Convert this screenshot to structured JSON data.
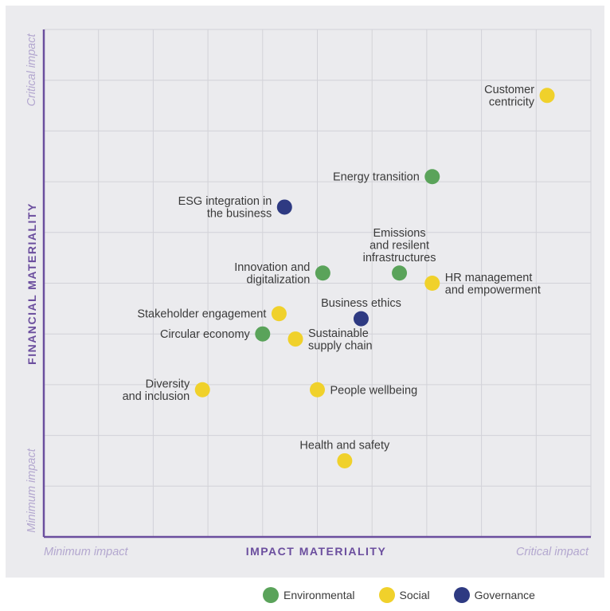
{
  "chart_data": {
    "type": "scatter",
    "xlabel": "IMPACT MATERIALITY",
    "ylabel": "FINANCIAL MATERIALITY",
    "x_min_label": "Minimum impact",
    "x_max_label": "Critical impact",
    "y_min_label": "Minimum impact",
    "y_max_label": "Critical impact",
    "xlim": [
      0,
      10
    ],
    "ylim": [
      0,
      10
    ],
    "grid": true,
    "legend_position": "bottom-right",
    "categories": [
      {
        "key": "env",
        "name": "Environmental",
        "color": "#5aa35a"
      },
      {
        "key": "soc",
        "name": "Social",
        "color": "#f0d12b"
      },
      {
        "key": "gov",
        "name": "Governance",
        "color": "#2e3a82"
      }
    ],
    "points": [
      {
        "label": "Customer centricity",
        "lines": [
          "Customer",
          "centricity"
        ],
        "x": 9.2,
        "y": 8.7,
        "category": "soc",
        "label_side": "left"
      },
      {
        "label": "Energy transition",
        "lines": [
          "Energy transition"
        ],
        "x": 7.1,
        "y": 7.1,
        "category": "env",
        "label_side": "left"
      },
      {
        "label": "ESG integration in the business",
        "lines": [
          "ESG integration in",
          "the business"
        ],
        "x": 4.4,
        "y": 6.5,
        "category": "gov",
        "label_side": "left"
      },
      {
        "label": "Emissions and resilent infrastructures",
        "lines": [
          "Emissions",
          "and resilent",
          "infrastructures"
        ],
        "x": 6.5,
        "y": 5.2,
        "category": "env",
        "label_side": "top"
      },
      {
        "label": "Innovation and digitalization",
        "lines": [
          "Innovation and",
          "digitalization"
        ],
        "x": 5.1,
        "y": 5.2,
        "category": "env",
        "label_side": "left"
      },
      {
        "label": "HR management and empowerment",
        "lines": [
          "HR management",
          "and empowerment"
        ],
        "x": 7.1,
        "y": 5.0,
        "category": "soc",
        "label_side": "right"
      },
      {
        "label": "Business ethics",
        "lines": [
          "Business ethics"
        ],
        "x": 5.8,
        "y": 4.3,
        "category": "gov",
        "label_side": "top"
      },
      {
        "label": "Stakeholder engagement",
        "lines": [
          "Stakeholder engagement"
        ],
        "x": 4.3,
        "y": 4.4,
        "category": "soc",
        "label_side": "left"
      },
      {
        "label": "Circular economy",
        "lines": [
          "Circular economy"
        ],
        "x": 4.0,
        "y": 4.0,
        "category": "env",
        "label_side": "left"
      },
      {
        "label": "Sustainable supply chain",
        "lines": [
          "Sustainable",
          "supply chain"
        ],
        "x": 4.6,
        "y": 3.9,
        "category": "soc",
        "label_side": "right"
      },
      {
        "label": "Diversity and inclusion",
        "lines": [
          "Diversity",
          "and inclusion"
        ],
        "x": 2.9,
        "y": 2.9,
        "category": "soc",
        "label_side": "left"
      },
      {
        "label": "People wellbeing",
        "lines": [
          "People wellbeing"
        ],
        "x": 5.0,
        "y": 2.9,
        "category": "soc",
        "label_side": "right"
      },
      {
        "label": "Health and safety",
        "lines": [
          "Health and safety"
        ],
        "x": 5.5,
        "y": 1.5,
        "category": "soc",
        "label_side": "top"
      }
    ]
  }
}
